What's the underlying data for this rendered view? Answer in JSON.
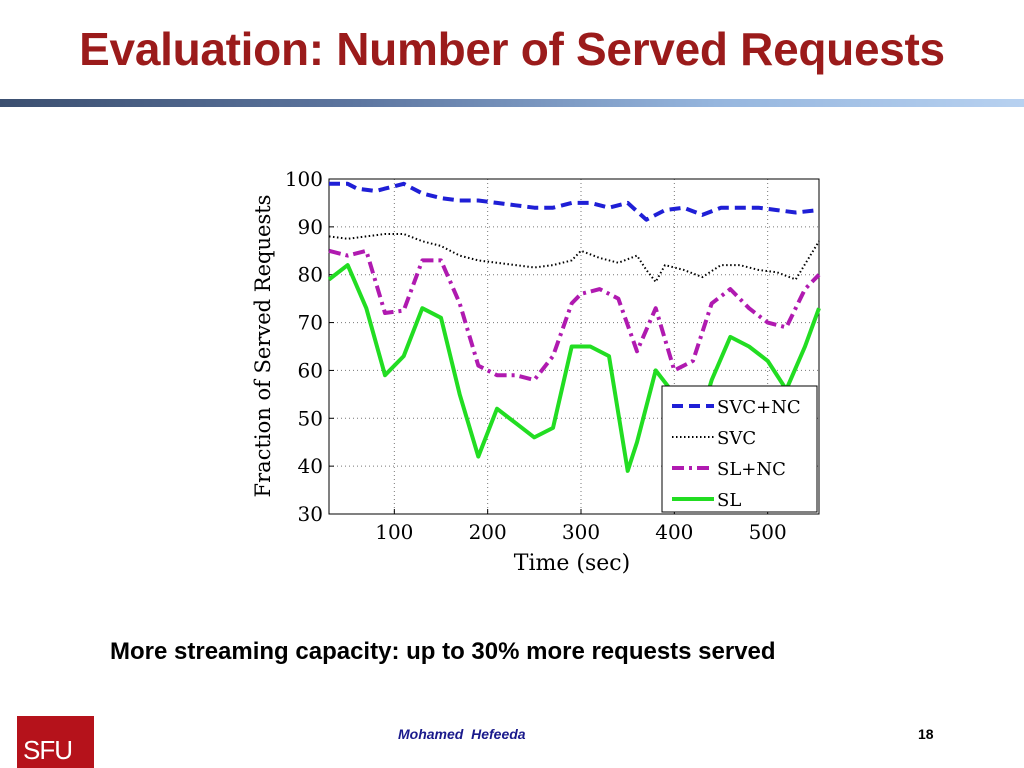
{
  "slide": {
    "title": "Evaluation: Number of Served Requests",
    "caption": "More streaming capacity: up to 30% more requests served",
    "author": "Mohamed  Hefeeda",
    "page_number": "18",
    "logo_text": "SFU"
  },
  "colors": {
    "title": "#9b1b1b",
    "logo": "#b5121b",
    "author": "#1a1a8c"
  },
  "chart_data": {
    "type": "line",
    "xlabel": "Time (sec)",
    "ylabel": "Fraction of Served Requests",
    "xlim": [
      30,
      555
    ],
    "ylim": [
      30,
      100
    ],
    "xticks": [
      100,
      200,
      300,
      400,
      500
    ],
    "yticks": [
      30,
      40,
      50,
      60,
      70,
      80,
      90,
      100
    ],
    "grid": true,
    "legend_position": "bottom-right",
    "series": [
      {
        "name": "SVC+NC",
        "color": "#1f1fd6",
        "style": "dashed",
        "x": [
          30,
          50,
          60,
          80,
          90,
          110,
          130,
          150,
          170,
          190,
          210,
          230,
          250,
          270,
          290,
          310,
          330,
          350,
          370,
          390,
          410,
          430,
          450,
          470,
          490,
          510,
          530,
          555
        ],
        "y": [
          99,
          99,
          98,
          97.5,
          98,
          99,
          97,
          96,
          95.5,
          95.5,
          95,
          94.5,
          94,
          94,
          95,
          95,
          94,
          95,
          91.5,
          93.5,
          94,
          92.5,
          94,
          94,
          94,
          93.5,
          93,
          93.5
        ]
      },
      {
        "name": "SVC",
        "color": "#000000",
        "style": "dotted",
        "x": [
          30,
          50,
          70,
          90,
          110,
          130,
          150,
          170,
          190,
          210,
          230,
          250,
          270,
          290,
          300,
          320,
          340,
          360,
          370,
          380,
          390,
          410,
          430,
          450,
          470,
          490,
          510,
          530,
          555
        ],
        "y": [
          88,
          87.5,
          88,
          88.5,
          88.5,
          87,
          86,
          84,
          83,
          82.5,
          82,
          81.5,
          82,
          83,
          85,
          83.5,
          82.5,
          84,
          81,
          78.5,
          82,
          81,
          79.5,
          82,
          82,
          81,
          80.5,
          79,
          87
        ]
      },
      {
        "name": "SL+NC",
        "color": "#b01ab0",
        "style": "dashdot",
        "x": [
          30,
          50,
          70,
          90,
          110,
          130,
          150,
          170,
          190,
          210,
          230,
          250,
          270,
          290,
          300,
          320,
          340,
          360,
          380,
          400,
          420,
          440,
          460,
          480,
          500,
          520,
          540,
          555
        ],
        "y": [
          85,
          84,
          85,
          72,
          72.5,
          83,
          83,
          74,
          61,
          59,
          59,
          58,
          63,
          74,
          76,
          77,
          75,
          64,
          73,
          60,
          62,
          74,
          77,
          73,
          70,
          69,
          77,
          80
        ]
      },
      {
        "name": "SL",
        "color": "#22dd22",
        "style": "solid",
        "x": [
          30,
          50,
          70,
          90,
          110,
          130,
          150,
          170,
          190,
          210,
          230,
          250,
          270,
          290,
          310,
          330,
          350,
          360,
          380,
          400,
          420,
          440,
          460,
          480,
          500,
          520,
          540,
          555
        ],
        "y": [
          79,
          82,
          73,
          59,
          63,
          73,
          71,
          55,
          42,
          52,
          49,
          46,
          48,
          65,
          65,
          63,
          39,
          45,
          60,
          55,
          45,
          58,
          67,
          65,
          62,
          56,
          65,
          73
        ]
      }
    ]
  }
}
